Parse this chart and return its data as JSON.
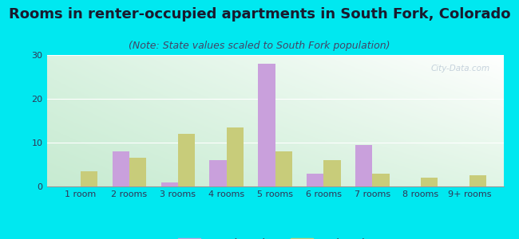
{
  "title": "Rooms in renter-occupied apartments in South Fork, Colorado",
  "subtitle": "(Note: State values scaled to South Fork population)",
  "categories": [
    "1 room",
    "2 rooms",
    "3 rooms",
    "4 rooms",
    "5 rooms",
    "6 rooms",
    "7 rooms",
    "8 rooms",
    "9+ rooms"
  ],
  "south_fork": [
    0,
    8,
    1,
    6,
    28,
    3,
    9.5,
    0,
    0
  ],
  "colorado": [
    3.5,
    6.5,
    12,
    13.5,
    8,
    6,
    3,
    2,
    2.5
  ],
  "south_fork_color": "#c9a0dc",
  "colorado_color": "#c8cc7a",
  "bg_outer": "#00e8f0",
  "bg_chart_top_left": "#e8f5e9",
  "bg_chart_top_right": "#ffffff",
  "bg_chart_bottom": "#c8e6c9",
  "ylim": [
    0,
    30
  ],
  "yticks": [
    0,
    10,
    20,
    30
  ],
  "title_fontsize": 13,
  "subtitle_fontsize": 9,
  "tick_fontsize": 8,
  "legend_fontsize": 10,
  "title_color": "#1a1a2e",
  "subtitle_color": "#444466",
  "tick_color": "#333355",
  "watermark": "City-Data.com"
}
